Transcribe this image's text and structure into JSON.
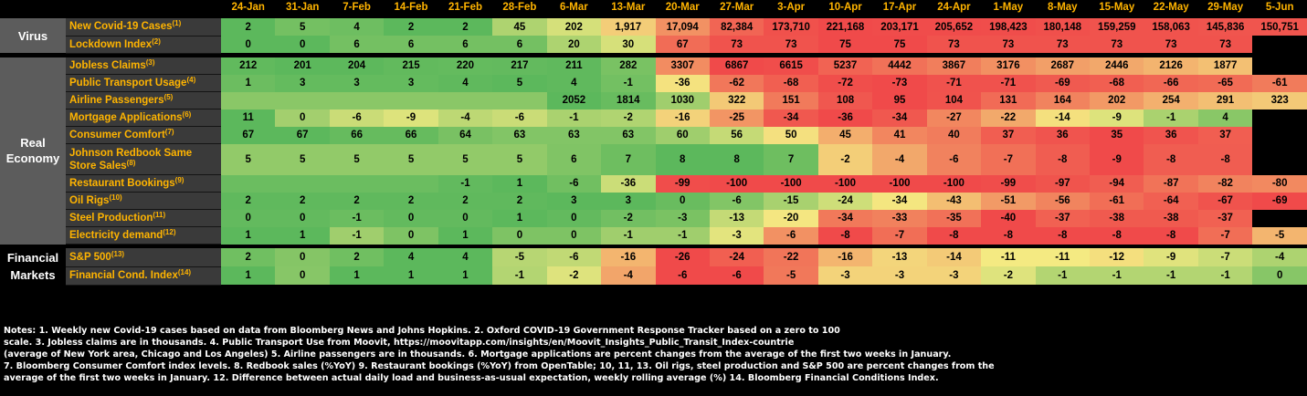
{
  "chart_data": {
    "type": "heatmap",
    "title": "",
    "columns": [
      "24-Jan",
      "31-Jan",
      "7-Feb",
      "14-Feb",
      "21-Feb",
      "28-Feb",
      "6-Mar",
      "13-Mar",
      "20-Mar",
      "27-Mar",
      "3-Apr",
      "10-Apr",
      "17-Apr",
      "24-Apr",
      "1-May",
      "8-May",
      "15-May",
      "22-May",
      "29-May",
      "5-Jun"
    ],
    "groups": [
      {
        "name_lines": [
          "Virus"
        ],
        "rows": [
          {
            "label": "New Covid-19 Cases",
            "note": "(1)",
            "values": [
              "2",
              "5",
              "4",
              "2",
              "2",
              "45",
              "202",
              "1,917",
              "17,094",
              "82,384",
              "173,710",
              "221,168",
              "203,171",
              "205,652",
              "198,423",
              "180,148",
              "159,259",
              "158,063",
              "145,836",
              "150,751"
            ]
          },
          {
            "label": "Lockdown Index",
            "note": "(2)",
            "values": [
              "0",
              "0",
              "6",
              "6",
              "6",
              "6",
              "20",
              "30",
              "67",
              "73",
              "73",
              "75",
              "75",
              "73",
              "73",
              "73",
              "73",
              "73",
              "73",
              ""
            ]
          }
        ]
      },
      {
        "name_lines": [
          "Real",
          "Economy"
        ],
        "rows": [
          {
            "label": "Jobless Claims",
            "note": "(3)",
            "values": [
              "212",
              "201",
              "204",
              "215",
              "220",
              "217",
              "211",
              "282",
              "3307",
              "6867",
              "6615",
              "5237",
              "4442",
              "3867",
              "3176",
              "2687",
              "2446",
              "2126",
              "1877",
              ""
            ]
          },
          {
            "label": "Public Transport Usage",
            "note": "(4)",
            "values": [
              "1",
              "3",
              "3",
              "3",
              "4",
              "5",
              "4",
              "-1",
              "-36",
              "-62",
              "-68",
              "-72",
              "-73",
              "-71",
              "-71",
              "-69",
              "-68",
              "-66",
              "-65",
              "-61"
            ]
          },
          {
            "label": "Airline Passengers",
            "note": "(5)",
            "values": [
              "",
              "",
              "",
              "",
              "",
              "",
              "2052",
              "1814",
              "1030",
              "322",
              "151",
              "108",
              "95",
              "104",
              "131",
              "164",
              "202",
              "254",
              "291",
              "323"
            ]
          },
          {
            "label": "Mortgage Applications",
            "note": "(6)",
            "values": [
              "11",
              "0",
              "-6",
              "-9",
              "-4",
              "-6",
              "-1",
              "-2",
              "-16",
              "-25",
              "-34",
              "-36",
              "-34",
              "-27",
              "-22",
              "-14",
              "-9",
              "-1",
              "4",
              ""
            ]
          },
          {
            "label": "Consumer Comfort",
            "note": "(7)",
            "values": [
              "67",
              "67",
              "66",
              "66",
              "64",
              "63",
              "63",
              "63",
              "60",
              "56",
              "50",
              "45",
              "41",
              "40",
              "37",
              "36",
              "35",
              "36",
              "37",
              ""
            ]
          },
          {
            "label": "Johnson Redbook Same",
            "label2": "Store Sales",
            "note": "(8)",
            "values": [
              "5",
              "5",
              "5",
              "5",
              "5",
              "5",
              "6",
              "7",
              "8",
              "8",
              "7",
              "-2",
              "-4",
              "-6",
              "-7",
              "-8",
              "-9",
              "-8",
              "-8",
              ""
            ]
          },
          {
            "label": "Restaurant Bookings",
            "note": "(9)",
            "values": [
              "",
              "",
              "",
              "",
              "-1",
              "1",
              "-6",
              "-36",
              "-99",
              "-100",
              "-100",
              "-100",
              "-100",
              "-100",
              "-99",
              "-97",
              "-94",
              "-87",
              "-82",
              "-80"
            ]
          },
          {
            "label": "Oil Rigs",
            "note": "(10)",
            "values": [
              "2",
              "2",
              "2",
              "2",
              "2",
              "2",
              "3",
              "3",
              "0",
              "-6",
              "-15",
              "-24",
              "-34",
              "-43",
              "-51",
              "-56",
              "-61",
              "-64",
              "-67",
              "-69"
            ]
          },
          {
            "label": "Steel Production",
            "note": "(11)",
            "values": [
              "0",
              "0",
              "-1",
              "0",
              "0",
              "1",
              "0",
              "-2",
              "-3",
              "-13",
              "-20",
              "-34",
              "-33",
              "-35",
              "-40",
              "-37",
              "-38",
              "-38",
              "-37",
              ""
            ]
          },
          {
            "label": "Electricity demand",
            "note": "(12)",
            "values": [
              "1",
              "1",
              "-1",
              "0",
              "1",
              "0",
              "0",
              "-1",
              "-1",
              "-3",
              "-6",
              "-8",
              "-7",
              "-8",
              "-8",
              "-8",
              "-8",
              "-8",
              "-7",
              "-5"
            ]
          }
        ]
      },
      {
        "name_lines": [
          "Financial",
          "Markets"
        ],
        "rows": [
          {
            "label": "S&P 500",
            "note": "(13)",
            "values": [
              "2",
              "0",
              "2",
              "4",
              "4",
              "-5",
              "-6",
              "-16",
              "-26",
              "-24",
              "-22",
              "-16",
              "-13",
              "-14",
              "-11",
              "-11",
              "-12",
              "-9",
              "-7",
              "-4"
            ]
          },
          {
            "label": "Financial Cond. Index",
            "note": "(14)",
            "values": [
              "1",
              "0",
              "1",
              "1",
              "1",
              "-1",
              "-2",
              "-4",
              "-6",
              "-6",
              "-5",
              "-3",
              "-3",
              "-3",
              "-2",
              "-1",
              "-1",
              "-1",
              "-1",
              "0"
            ]
          }
        ]
      }
    ],
    "colors": {
      "good": "#5cb85c",
      "neutral": "#f4ea82",
      "bad": "#f04a4a",
      "label_bg": "#3a3a3a",
      "label_text": "#ffb400",
      "group_bg": "#5c5c5c",
      "date_text": "#ffb400"
    }
  },
  "notes": [
    "Notes: 1. Weekly new Covid-19 cases based on data from Bloomberg News and Johns Hopkins. 2. Oxford COVID-19 Government Response Tracker based on a zero to 100",
    "scale. 3. Jobless claims are in thousands. 4. Public Transport Use from Moovit, https://moovitapp.com/insights/en/Moovit_Insights_Public_Transit_Index-countrie",
    "(average of New York area, Chicago and Los Angeles) 5. Airline passengers are in thousands. 6. Mortgage applications are percent changes from the average of the first two weeks in January.",
    "7. Bloomberg Consumer Comfort index levels. 8. Redbook sales (%YoY) 9. Restaurant bookings (%YoY) from OpenTable; 10, 11, 13. Oil rigs, steel production and S&P 500 are percent changes from the",
    "average of the first two weeks in January. 12. Difference between actual daily load and business-as-usual expectation, weekly rolling average (%) 14. Bloomberg Financial Conditions Index."
  ]
}
